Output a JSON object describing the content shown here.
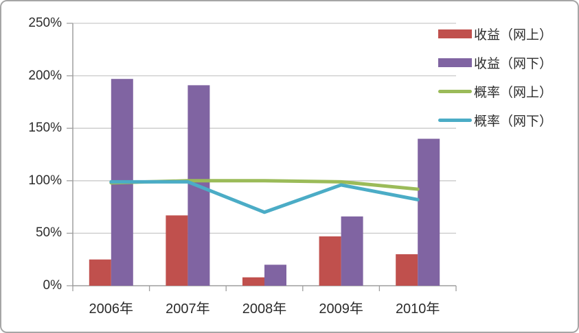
{
  "chart_data": {
    "type": "combo",
    "title": "",
    "categories": [
      "2006年",
      "2007年",
      "2008年",
      "2009年",
      "2010年"
    ],
    "series": [
      {
        "name": "收益（网上）",
        "type": "bar",
        "color": "#C0504D",
        "values": [
          25,
          67,
          8,
          47,
          30
        ]
      },
      {
        "name": "收益（网下）",
        "type": "bar",
        "color": "#8064A2",
        "values": [
          197,
          191,
          20,
          66,
          140
        ]
      },
      {
        "name": "概率（网上）",
        "type": "line",
        "color": "#9BBB59",
        "values": [
          98,
          100,
          100,
          99,
          92
        ]
      },
      {
        "name": "概率（网下）",
        "type": "line",
        "color": "#4BACC6",
        "values": [
          99,
          99,
          70,
          96,
          82
        ]
      }
    ],
    "unit": "percent",
    "y_axis": {
      "min": 0,
      "max": 250,
      "step": 50,
      "tick_labels": [
        "0%",
        "50%",
        "100%",
        "150%",
        "200%",
        "250%"
      ]
    },
    "x_axis": {
      "tick_labels": [
        "2006年",
        "2007年",
        "2008年",
        "2009年",
        "2010年"
      ]
    },
    "legend_position": "right",
    "grid": true,
    "colors": {
      "gridline": "#C9C9C9",
      "axis": "#9E9E9E",
      "text": "#2B2B2B",
      "background": "#FFFFFF",
      "frame_border": "#A6A6A6"
    }
  }
}
